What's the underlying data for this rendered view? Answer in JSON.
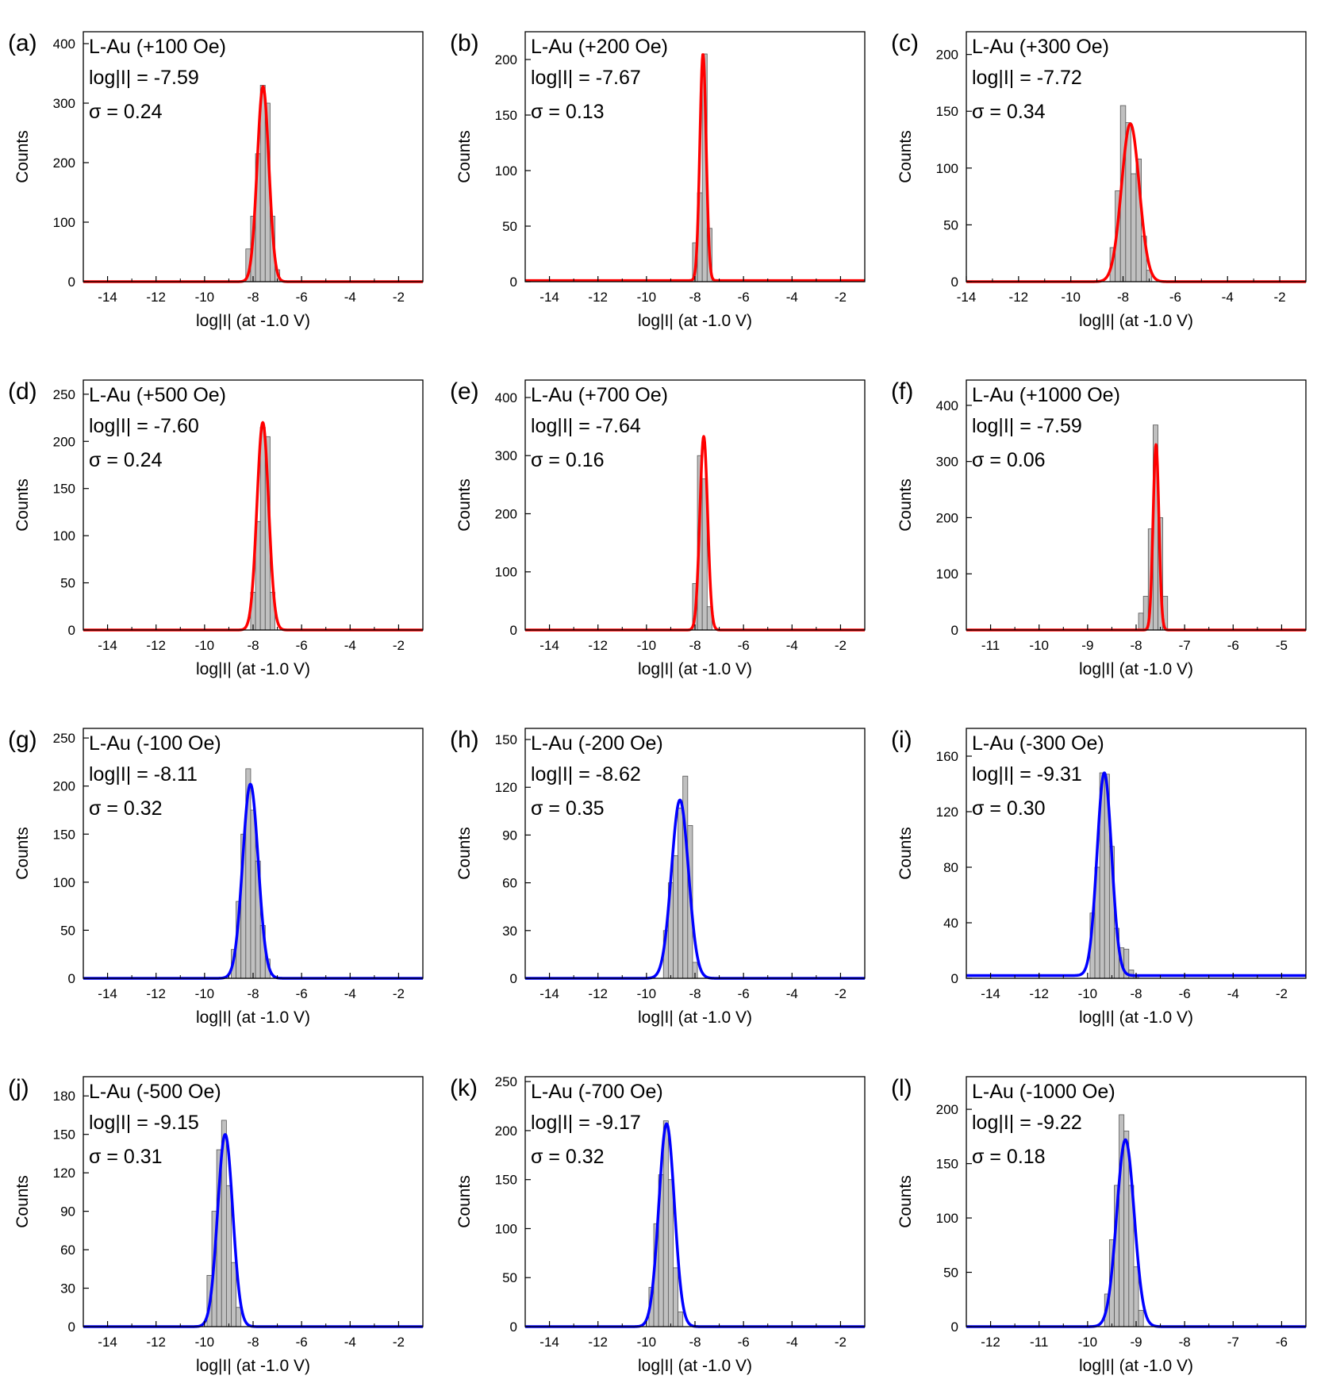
{
  "figure": {
    "panels": [
      {
        "label": "(a)",
        "title": "L-Au (+100 Oe)",
        "logI": "log|I| = -7.59",
        "sigma": "σ = 0.24",
        "color": "#ff0000"
      },
      {
        "label": "(b)",
        "title": "L-Au (+200 Oe)",
        "logI": "log|I| = -7.67",
        "sigma": "σ = 0.13",
        "color": "#ff0000"
      },
      {
        "label": "(c)",
        "title": "L-Au (+300 Oe)",
        "logI": "log|I| = -7.72",
        "sigma": "σ = 0.34",
        "color": "#ff0000"
      },
      {
        "label": "(d)",
        "title": "L-Au (+500 Oe)",
        "logI": "log|I| = -7.60",
        "sigma": "σ = 0.24",
        "color": "#ff0000"
      },
      {
        "label": "(e)",
        "title": "L-Au (+700 Oe)",
        "logI": "log|I| = -7.64",
        "sigma": "σ = 0.16",
        "color": "#ff0000"
      },
      {
        "label": "(f)",
        "title": "L-Au (+1000 Oe)",
        "logI": "log|I| = -7.59",
        "sigma": "σ = 0.06",
        "color": "#ff0000"
      },
      {
        "label": "(g)",
        "title": "L-Au (-100 Oe)",
        "logI": "log|I| = -8.11",
        "sigma": "σ = 0.32",
        "color": "#0000ff"
      },
      {
        "label": "(h)",
        "title": "L-Au (-200 Oe)",
        "logI": "log|I| = -8.62",
        "sigma": "σ = 0.35",
        "color": "#0000ff"
      },
      {
        "label": "(i)",
        "title": "L-Au (-300 Oe)",
        "logI": "log|I| = -9.31",
        "sigma": "σ = 0.30",
        "color": "#0000ff"
      },
      {
        "label": "(j)",
        "title": "L-Au (-500 Oe)",
        "logI": "log|I| = -9.15",
        "sigma": "σ = 0.31",
        "color": "#0000ff"
      },
      {
        "label": "(k)",
        "title": "L-Au (-700 Oe)",
        "logI": "log|I| = -9.17",
        "sigma": "σ = 0.32",
        "color": "#0000ff"
      },
      {
        "label": "(l)",
        "title": "L-Au (-1000 Oe)",
        "logI": "log|I| = -9.22",
        "sigma": "σ = 0.18",
        "color": "#0000ff"
      }
    ]
  },
  "chart_data": [
    {
      "type": "bar",
      "panel": "(a)",
      "xlabel": "log|I| (at -1.0 V)",
      "ylabel": "Counts",
      "xlim": [
        -15,
        -1
      ],
      "ylim": [
        0,
        420
      ],
      "xticks": [
        -14,
        -12,
        -10,
        -8,
        -6,
        -4,
        -2
      ],
      "yticks": [
        0,
        100,
        200,
        300,
        400
      ],
      "bin_width": 0.2,
      "hist_x": [
        -8.2,
        -8.0,
        -7.8,
        -7.6,
        -7.4,
        -7.2,
        -7.0
      ],
      "hist_y": [
        55,
        110,
        215,
        330,
        300,
        110,
        20
      ],
      "fit": {
        "type": "gaussian",
        "center": -7.59,
        "sigma": 0.24,
        "peak": 328,
        "baseline": 0,
        "color": "#ff0000"
      }
    },
    {
      "type": "bar",
      "panel": "(b)",
      "xlabel": "log|I| (at -1.0 V)",
      "ylabel": "Counts",
      "xlim": [
        -15,
        -1
      ],
      "ylim": [
        0,
        225
      ],
      "xticks": [
        -14,
        -12,
        -10,
        -8,
        -6,
        -4,
        -2
      ],
      "yticks": [
        0,
        50,
        100,
        150,
        200
      ],
      "bin_width": 0.2,
      "hist_x": [
        -8.0,
        -7.8,
        -7.6,
        -7.4
      ],
      "hist_y": [
        35,
        80,
        205,
        48
      ],
      "fit": {
        "type": "gaussian",
        "center": -7.67,
        "sigma": 0.13,
        "peak": 205,
        "baseline": 1,
        "color": "#ff0000"
      }
    },
    {
      "type": "bar",
      "panel": "(c)",
      "xlabel": "log|I| (at -1.0 V)",
      "ylabel": "Counts",
      "xlim": [
        -14,
        -1
      ],
      "ylim": [
        0,
        220
      ],
      "xticks": [
        -14,
        -12,
        -10,
        -8,
        -6,
        -4,
        -2
      ],
      "yticks": [
        0,
        50,
        100,
        150,
        200
      ],
      "bin_width": 0.2,
      "hist_x": [
        -8.4,
        -8.2,
        -8.0,
        -7.8,
        -7.6,
        -7.4,
        -7.2,
        -7.0
      ],
      "hist_y": [
        30,
        80,
        155,
        140,
        95,
        108,
        40,
        10
      ],
      "fit": {
        "type": "gaussian",
        "center": -7.72,
        "sigma": 0.34,
        "peak": 139,
        "baseline": 0,
        "color": "#ff0000"
      }
    },
    {
      "type": "bar",
      "panel": "(d)",
      "xlabel": "log|I| (at -1.0 V)",
      "ylabel": "Counts",
      "xlim": [
        -15,
        -1
      ],
      "ylim": [
        0,
        265
      ],
      "xticks": [
        -14,
        -12,
        -10,
        -8,
        -6,
        -4,
        -2
      ],
      "yticks": [
        0,
        50,
        100,
        150,
        200,
        250
      ],
      "bin_width": 0.2,
      "hist_x": [
        -8.0,
        -7.8,
        -7.6,
        -7.4,
        -7.2
      ],
      "hist_y": [
        40,
        115,
        215,
        205,
        40
      ],
      "fit": {
        "type": "gaussian",
        "center": -7.6,
        "sigma": 0.24,
        "peak": 220,
        "baseline": 0,
        "color": "#ff0000"
      }
    },
    {
      "type": "bar",
      "panel": "(e)",
      "xlabel": "log|I| (at -1.0 V)",
      "ylabel": "Counts",
      "xlim": [
        -15,
        -1
      ],
      "ylim": [
        0,
        430
      ],
      "xticks": [
        -14,
        -12,
        -10,
        -8,
        -6,
        -4,
        -2
      ],
      "yticks": [
        0,
        100,
        200,
        300,
        400
      ],
      "bin_width": 0.2,
      "hist_x": [
        -8.0,
        -7.8,
        -7.6,
        -7.4
      ],
      "hist_y": [
        80,
        300,
        260,
        40
      ],
      "fit": {
        "type": "gaussian",
        "center": -7.64,
        "sigma": 0.16,
        "peak": 333,
        "baseline": 0,
        "color": "#ff0000"
      }
    },
    {
      "type": "bar",
      "panel": "(f)",
      "xlabel": "log|I| (at -1.0 V)",
      "ylabel": "Counts",
      "xlim": [
        -11.5,
        -4.5
      ],
      "ylim": [
        0,
        445
      ],
      "xticks": [
        -11,
        -10,
        -9,
        -8,
        -7,
        -6,
        -5
      ],
      "yticks": [
        0,
        100,
        200,
        300,
        400
      ],
      "bin_width": 0.1,
      "hist_x": [
        -7.9,
        -7.8,
        -7.7,
        -7.6,
        -7.5,
        -7.4
      ],
      "hist_y": [
        30,
        60,
        180,
        365,
        200,
        60
      ],
      "fit": {
        "type": "gaussian",
        "center": -7.59,
        "sigma": 0.06,
        "peak": 330,
        "baseline": 0,
        "color": "#ff0000"
      }
    },
    {
      "type": "bar",
      "panel": "(g)",
      "xlabel": "log|I| (at -1.0 V)",
      "ylabel": "Counts",
      "xlim": [
        -15,
        -1
      ],
      "ylim": [
        0,
        260
      ],
      "xticks": [
        -14,
        -12,
        -10,
        -8,
        -6,
        -4,
        -2
      ],
      "yticks": [
        0,
        50,
        100,
        150,
        200,
        250
      ],
      "bin_width": 0.2,
      "hist_x": [
        -8.8,
        -8.6,
        -8.4,
        -8.2,
        -8.0,
        -7.8,
        -7.6,
        -7.4
      ],
      "hist_y": [
        30,
        80,
        150,
        218,
        175,
        122,
        55,
        20
      ],
      "fit": {
        "type": "gaussian",
        "center": -8.11,
        "sigma": 0.32,
        "peak": 202,
        "baseline": 0,
        "color": "#0000ff"
      }
    },
    {
      "type": "bar",
      "panel": "(h)",
      "xlabel": "log|I| (at -1.0 V)",
      "ylabel": "Counts",
      "xlim": [
        -15,
        -1
      ],
      "ylim": [
        0,
        157
      ],
      "xticks": [
        -14,
        -12,
        -10,
        -8,
        -6,
        -4,
        -2
      ],
      "yticks": [
        0,
        30,
        60,
        90,
        120,
        150
      ],
      "bin_width": 0.2,
      "hist_x": [
        -9.2,
        -9.0,
        -8.8,
        -8.6,
        -8.4,
        -8.2,
        -8.0
      ],
      "hist_y": [
        30,
        60,
        77,
        107,
        127,
        96,
        10
      ],
      "fit": {
        "type": "gaussian",
        "center": -8.62,
        "sigma": 0.35,
        "peak": 112,
        "baseline": 0,
        "color": "#0000ff"
      }
    },
    {
      "type": "bar",
      "panel": "(i)",
      "xlabel": "log|I| (at -1.0 V)",
      "ylabel": "Counts",
      "xlim": [
        -15,
        -1
      ],
      "ylim": [
        0,
        180
      ],
      "xticks": [
        -14,
        -12,
        -10,
        -8,
        -6,
        -4,
        -2
      ],
      "yticks": [
        0,
        40,
        80,
        120,
        160
      ],
      "bin_width": 0.2,
      "hist_x": [
        -9.8,
        -9.6,
        -9.4,
        -9.2,
        -9.0,
        -8.8,
        -8.6,
        -8.4,
        -8.2,
        -8.0
      ],
      "hist_y": [
        47,
        80,
        148,
        147,
        95,
        36,
        22,
        21,
        6,
        2
      ],
      "fit": {
        "type": "gaussian",
        "center": -9.31,
        "sigma": 0.3,
        "peak": 148,
        "baseline": 2,
        "color": "#0000ff"
      }
    },
    {
      "type": "bar",
      "panel": "(j)",
      "xlabel": "log|I| (at -1.0 V)",
      "ylabel": "Counts",
      "xlim": [
        -15,
        -1
      ],
      "ylim": [
        0,
        195
      ],
      "xticks": [
        -14,
        -12,
        -10,
        -8,
        -6,
        -4,
        -2
      ],
      "yticks": [
        0,
        30,
        60,
        90,
        120,
        150,
        180
      ],
      "bin_width": 0.2,
      "hist_x": [
        -9.8,
        -9.6,
        -9.4,
        -9.2,
        -9.0,
        -8.8,
        -8.6
      ],
      "hist_y": [
        40,
        90,
        138,
        161,
        110,
        50,
        15
      ],
      "fit": {
        "type": "gaussian",
        "center": -9.15,
        "sigma": 0.31,
        "peak": 150,
        "baseline": 0,
        "color": "#0000ff"
      }
    },
    {
      "type": "bar",
      "panel": "(k)",
      "xlabel": "log|I| (at -1.0 V)",
      "ylabel": "Counts",
      "xlim": [
        -15,
        -1
      ],
      "ylim": [
        0,
        255
      ],
      "xticks": [
        -14,
        -12,
        -10,
        -8,
        -6,
        -4,
        -2
      ],
      "yticks": [
        0,
        50,
        100,
        150,
        200,
        250
      ],
      "bin_width": 0.2,
      "hist_x": [
        -9.8,
        -9.6,
        -9.4,
        -9.2,
        -9.0,
        -8.8,
        -8.6
      ],
      "hist_y": [
        40,
        105,
        155,
        210,
        150,
        60,
        15
      ],
      "fit": {
        "type": "gaussian",
        "center": -9.17,
        "sigma": 0.32,
        "peak": 207,
        "baseline": 0,
        "color": "#0000ff"
      }
    },
    {
      "type": "bar",
      "panel": "(l)",
      "xlabel": "log|I| (at -1.0 V)",
      "ylabel": "Counts",
      "xlim": [
        -12.5,
        -5.5
      ],
      "ylim": [
        0,
        230
      ],
      "xticks": [
        -12,
        -11,
        -10,
        -9,
        -8,
        -7,
        -6
      ],
      "yticks": [
        0,
        50,
        100,
        150,
        200
      ],
      "bin_width": 0.1,
      "hist_x": [
        -9.6,
        -9.5,
        -9.4,
        -9.3,
        -9.2,
        -9.1,
        -9.0,
        -8.9
      ],
      "hist_y": [
        30,
        80,
        130,
        195,
        180,
        130,
        55,
        15
      ],
      "fit": {
        "type": "gaussian",
        "center": -9.22,
        "sigma": 0.18,
        "peak": 172,
        "baseline": 0,
        "color": "#0000ff"
      }
    }
  ]
}
